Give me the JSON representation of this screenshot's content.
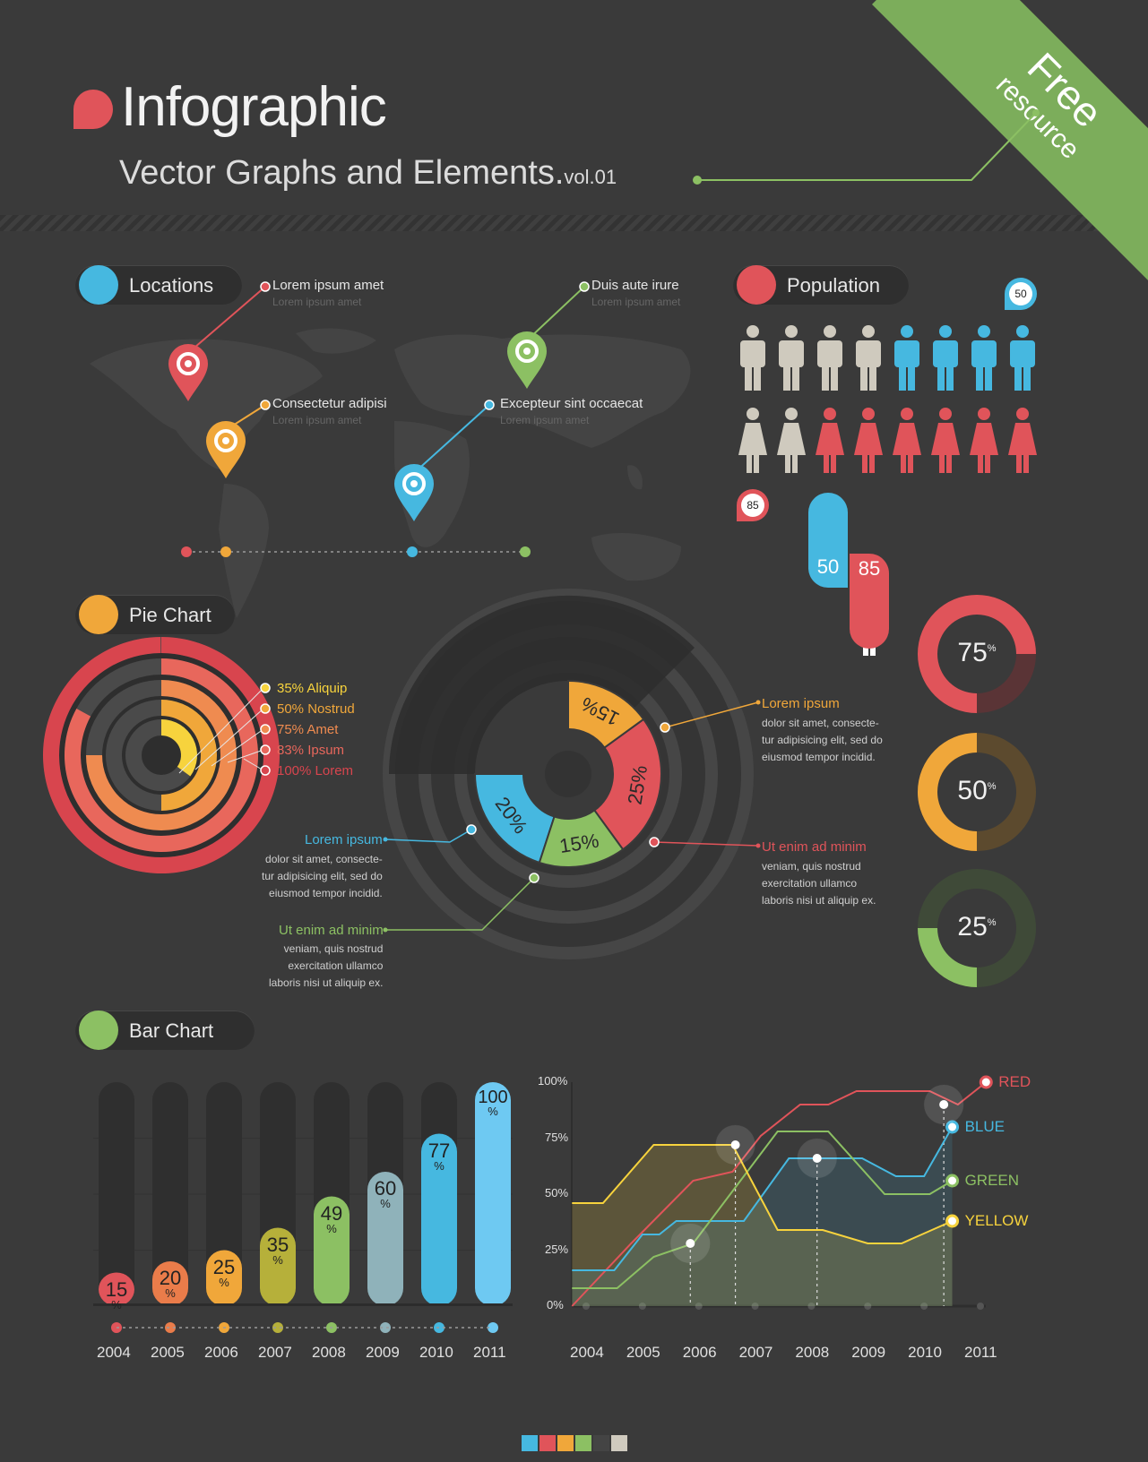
{
  "header": {
    "title": "Infographic",
    "subtitle": "Vector Graphs and Elements.",
    "subtitle_vol": "vol.01",
    "ribbon_line1": "Free",
    "ribbon_line2": "resource"
  },
  "colors": {
    "background": "#3a3a3a",
    "red": "#e0545a",
    "orange": "#f0a73a",
    "yellow": "#f7d33d",
    "green": "#8cc063",
    "blue": "#46b8e0",
    "gray": "#cfcabe"
  },
  "locations": {
    "header": "Locations",
    "icon": "map-pin-icon",
    "pins": [
      {
        "title": "Lorem ipsum amet",
        "sub": "Lorem ipsum amet",
        "color": "#e0545a"
      },
      {
        "title": "Consectetur adipisi",
        "sub": "Lorem ipsum amet",
        "color": "#f0a73a"
      },
      {
        "title": "Duis aute irure",
        "sub": "Lorem ipsum amet",
        "color": "#8cc063"
      },
      {
        "title": "Excepteur sint occaecat",
        "sub": "Lorem ipsum amet",
        "color": "#46b8e0"
      }
    ]
  },
  "population": {
    "header": "Population",
    "icon": "person-icon",
    "men_badge": "50",
    "women_badge": "85",
    "men_value": "50",
    "women_value": "85",
    "men_gray": 4,
    "men_total": 8,
    "women_gray": 2,
    "women_total": 8
  },
  "pie_section": {
    "header": "Pie Chart",
    "icon": "pie-chart-icon"
  },
  "chart_data": [
    {
      "type": "pie",
      "title": "",
      "legend": [
        {
          "label": "35% Aliquip",
          "value": 35,
          "color": "#f7d33d"
        },
        {
          "label": "50% Nostrud",
          "value": 50,
          "color": "#f0a73a"
        },
        {
          "label": "75% Amet",
          "value": 75,
          "color": "#ef8b50"
        },
        {
          "label": "83% Ipsum",
          "value": 83,
          "color": "#e8675c"
        },
        {
          "label": "100% Lorem",
          "value": 100,
          "color": "#d8454e"
        }
      ]
    },
    {
      "type": "pie",
      "title": "",
      "slices": [
        {
          "label": "20",
          "value": 20,
          "color": "#46b8e0"
        },
        {
          "label": "15",
          "value": 15,
          "color": "#8cc063"
        },
        {
          "label": "25",
          "value": 25,
          "color": "#e0545a"
        },
        {
          "label": "15",
          "value": 15,
          "color": "#f0a73a"
        }
      ],
      "pct_sign": "%",
      "annotations": [
        {
          "title": "Lorem ipsum",
          "text": "dolor sit amet, consecte-\ntur adipisicing elit, sed do\neiusmod tempor incidid.",
          "color": "#f0a73a"
        },
        {
          "title": "Ut enim ad minim",
          "text": "veniam, quis nostrud\nexercitation ullamco\nlaboris nisi ut aliquip ex.",
          "color": "#e0545a"
        },
        {
          "title": "Lorem ipsum",
          "text": "dolor sit amet, consecte-\ntur adipisicing elit, sed do\neiusmod tempor incidid.",
          "color": "#46b8e0"
        },
        {
          "title": "Ut enim ad minim",
          "text": "veniam, quis nostrud\nexercitation ullamco\nlaboris nisi ut aliquip ex.",
          "color": "#8cc063"
        }
      ]
    },
    {
      "type": "pie",
      "title": "",
      "donuts": [
        {
          "label": "75",
          "value": 75,
          "color": "#e0545a",
          "dark": "#5a3436"
        },
        {
          "label": "50",
          "value": 50,
          "color": "#f0a73a",
          "dark": "#5c4a2e"
        },
        {
          "label": "25",
          "value": 25,
          "color": "#8cc063",
          "dark": "#3f4a38"
        }
      ],
      "pct_sign": "%"
    },
    {
      "type": "bar",
      "title": "",
      "categories": [
        "2004",
        "2005",
        "2006",
        "2007",
        "2008",
        "2009",
        "2010",
        "2011"
      ],
      "values": [
        15,
        20,
        25,
        35,
        49,
        60,
        77,
        100
      ],
      "colors": [
        "#e0545a",
        "#ea7c4a",
        "#f0a73a",
        "#b6b03a",
        "#8cc063",
        "#8fb2ba",
        "#46b8e0",
        "#6ec9f2"
      ],
      "ylim": [
        0,
        100
      ],
      "pct_sign": "%"
    },
    {
      "type": "line",
      "title": "",
      "x": [
        "2004",
        "2005",
        "2006",
        "2007",
        "2008",
        "2009",
        "2010",
        "2011"
      ],
      "yticks": [
        "100%",
        "75%",
        "50%",
        "25%",
        "0%"
      ],
      "ylim": [
        0,
        100
      ],
      "series": [
        {
          "name": "RED",
          "color": "#e0545a",
          "values": [
            [
              2003.75,
              0
            ],
            [
              2004.8,
              28
            ],
            [
              2005.9,
              56
            ],
            [
              2006.6,
              60
            ],
            [
              2007.1,
              76
            ],
            [
              2007.8,
              90
            ],
            [
              2008.3,
              90
            ],
            [
              2008.8,
              96
            ],
            [
              2010.1,
              96
            ],
            [
              2010.6,
              90
            ],
            [
              2011.1,
              100
            ]
          ]
        },
        {
          "name": "BLUE",
          "color": "#46b8e0",
          "values": [
            [
              2003.75,
              16
            ],
            [
              2004.5,
              16
            ],
            [
              2005.0,
              32
            ],
            [
              2005.3,
              32
            ],
            [
              2005.6,
              38
            ],
            [
              2006.8,
              38
            ],
            [
              2007.6,
              66
            ],
            [
              2008.9,
              66
            ],
            [
              2009.5,
              58
            ],
            [
              2010.0,
              58
            ],
            [
              2010.5,
              80
            ]
          ]
        },
        {
          "name": "GREEN",
          "color": "#8cc063",
          "values": [
            [
              2003.75,
              8
            ],
            [
              2004.55,
              8
            ],
            [
              2005.2,
              22
            ],
            [
              2005.9,
              28
            ],
            [
              2007.4,
              78
            ],
            [
              2008.3,
              78
            ],
            [
              2009.3,
              50
            ],
            [
              2009.6,
              50
            ],
            [
              2010.1,
              50
            ],
            [
              2010.5,
              56
            ]
          ]
        },
        {
          "name": "YELLOW",
          "color": "#f7d33d",
          "values": [
            [
              2003.75,
              46
            ],
            [
              2004.3,
              46
            ],
            [
              2005.2,
              72
            ],
            [
              2006.6,
              72
            ],
            [
              2007.4,
              34
            ],
            [
              2008.2,
              34
            ],
            [
              2009.0,
              28
            ],
            [
              2009.6,
              28
            ],
            [
              2010.5,
              38
            ]
          ]
        }
      ],
      "highlights": [
        {
          "x": 2005.85,
          "y": 28
        },
        {
          "x": 2006.65,
          "y": 72
        },
        {
          "x": 2008.1,
          "y": 66
        },
        {
          "x": 2010.35,
          "y": 90
        }
      ]
    }
  ],
  "bar_section": {
    "header": "Bar Chart",
    "icon": "line-chart-icon"
  },
  "footer_swatches": [
    "#46b8e0",
    "#e0545a",
    "#f0a73a",
    "#8cc063",
    "#444444",
    "#cfcabe"
  ]
}
